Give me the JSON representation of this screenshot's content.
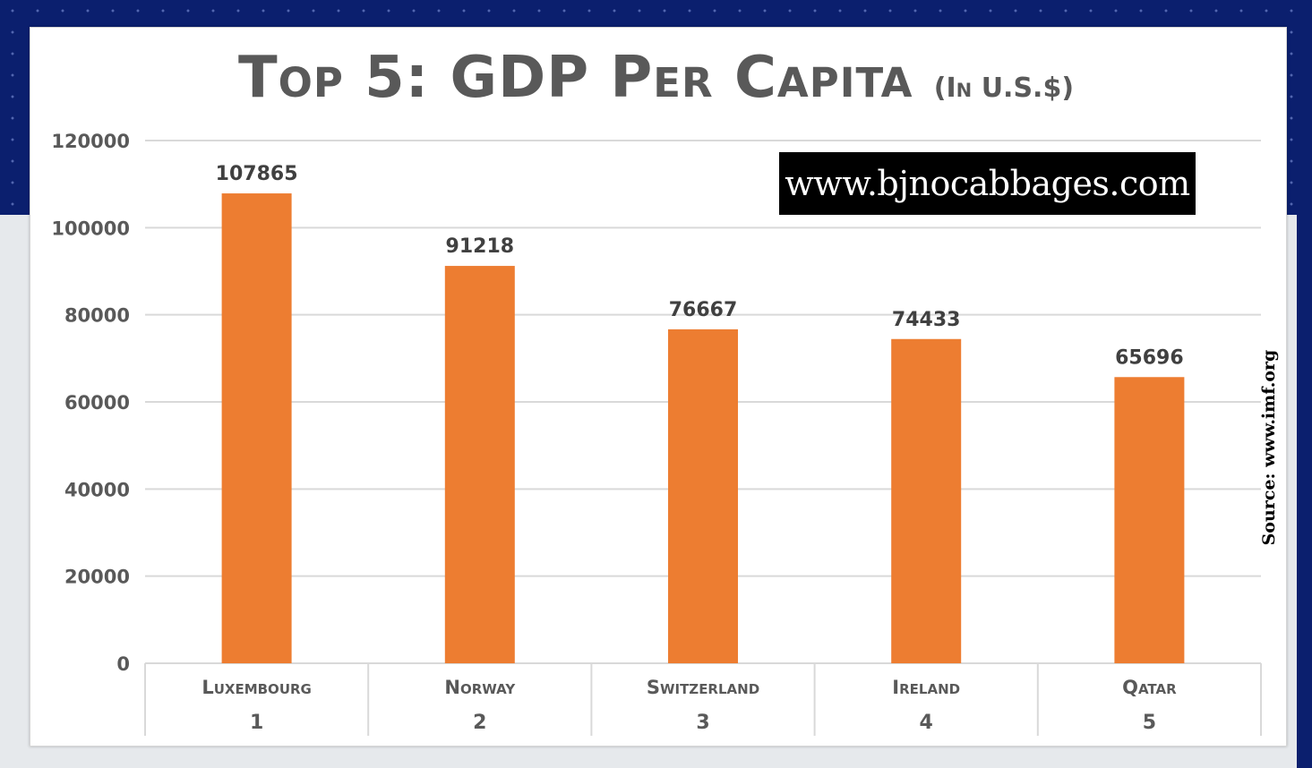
{
  "title": {
    "main": "Top 5: GDP Per Capita",
    "sub": "(In U.S.$)"
  },
  "watermark": "www.bjnocabbages.com",
  "source": "Source: www.imf.org",
  "colors": {
    "bar": "#ed7d31",
    "grid": "#d9d9d9",
    "header_background": "#0b1f6e"
  },
  "chart_data": {
    "type": "bar",
    "title": "Top 5: GDP Per Capita (In U.S.$)",
    "categories": [
      "Luxembourg",
      "Norway",
      "Switzerland",
      "Ireland",
      "Qatar"
    ],
    "ranks": [
      "1",
      "2",
      "3",
      "4",
      "5"
    ],
    "values": [
      107865,
      91218,
      76667,
      74433,
      65696
    ],
    "data_labels": [
      "107865",
      "91218",
      "76667",
      "74433",
      "65696"
    ],
    "yticks": [
      "0",
      "20000",
      "40000",
      "60000",
      "80000",
      "100000",
      "120000"
    ],
    "ylim": [
      0,
      120000
    ],
    "grid": true,
    "legend": "none"
  }
}
